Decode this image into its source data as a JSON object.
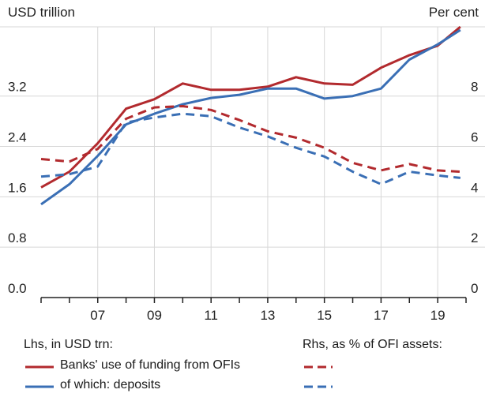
{
  "chart_data": {
    "type": "line",
    "left_axis": {
      "unit_label": "USD trillion",
      "ylim": [
        0,
        4.3
      ],
      "ticks": [
        "0.0",
        "0.8",
        "1.6",
        "2.4",
        "3.2"
      ],
      "tick_values": [
        0,
        0.8,
        1.6,
        2.4,
        3.2
      ]
    },
    "right_axis": {
      "unit_label": "Per cent",
      "ylim": [
        0,
        10.75
      ],
      "ticks": [
        "0",
        "2",
        "4",
        "6",
        "8"
      ],
      "tick_values": [
        0,
        2,
        4,
        6,
        8
      ]
    },
    "x_ticks": [
      "07",
      "09",
      "11",
      "13",
      "15",
      "17",
      "19"
    ],
    "x_tick_values": [
      2007,
      2009,
      2011,
      2013,
      2015,
      2017,
      2019
    ],
    "xlim": [
      2005.0,
      2020.0
    ],
    "grid": true,
    "series": [
      {
        "name": "Banks' use of funding from OFIs",
        "axis": "left",
        "style": "solid",
        "color": "#b22a2e",
        "x": [
          2005.0,
          2006.0,
          2007.0,
          2008.0,
          2009.0,
          2010.0,
          2011.0,
          2012.0,
          2013.0,
          2014.0,
          2015.0,
          2016.0,
          2017.0,
          2018.0,
          2019.0,
          2019.8
        ],
        "y": [
          1.75,
          2.0,
          2.45,
          3.0,
          3.15,
          3.4,
          3.3,
          3.3,
          3.35,
          3.5,
          3.4,
          3.38,
          3.65,
          3.85,
          4.0,
          4.3
        ]
      },
      {
        "name": "of which: deposits",
        "axis": "left",
        "style": "solid",
        "color": "#3a6fb5",
        "x": [
          2005.0,
          2006.0,
          2007.0,
          2008.0,
          2009.0,
          2010.0,
          2011.0,
          2012.0,
          2013.0,
          2014.0,
          2015.0,
          2016.0,
          2017.0,
          2018.0,
          2019.0,
          2019.8
        ],
        "y": [
          1.48,
          1.8,
          2.25,
          2.75,
          2.92,
          3.07,
          3.17,
          3.22,
          3.32,
          3.32,
          3.16,
          3.2,
          3.32,
          3.78,
          4.02,
          4.25
        ]
      },
      {
        "name": "Banks' use of funding from OFIs",
        "axis": "right",
        "style": "dashed",
        "color": "#b22a2e",
        "x": [
          2005.0,
          2006.0,
          2007.0,
          2008.0,
          2009.0,
          2010.0,
          2011.0,
          2012.0,
          2013.0,
          2014.0,
          2015.0,
          2016.0,
          2017.0,
          2018.0,
          2019.0,
          2019.8
        ],
        "y": [
          5.5,
          5.4,
          5.9,
          7.1,
          7.55,
          7.6,
          7.45,
          7.05,
          6.6,
          6.35,
          5.95,
          5.35,
          5.05,
          5.3,
          5.05,
          5.0
        ]
      },
      {
        "name": "of which: deposits",
        "axis": "right",
        "style": "dashed",
        "color": "#3a6fb5",
        "x": [
          2005.0,
          2006.0,
          2007.0,
          2008.0,
          2009.0,
          2010.0,
          2011.0,
          2012.0,
          2013.0,
          2014.0,
          2015.0,
          2016.0,
          2017.0,
          2018.0,
          2019.0,
          2019.8
        ],
        "y": [
          4.8,
          4.9,
          5.2,
          6.95,
          7.15,
          7.3,
          7.2,
          6.75,
          6.4,
          5.95,
          5.6,
          5.0,
          4.5,
          5.0,
          4.85,
          4.75
        ]
      }
    ]
  },
  "legend": {
    "lhs_header": "Lhs, in USD trn:",
    "rhs_header": "Rhs, as % of OFI assets:",
    "row1_label": "Banks' use of funding from OFIs",
    "row2_label": "of which: deposits"
  }
}
